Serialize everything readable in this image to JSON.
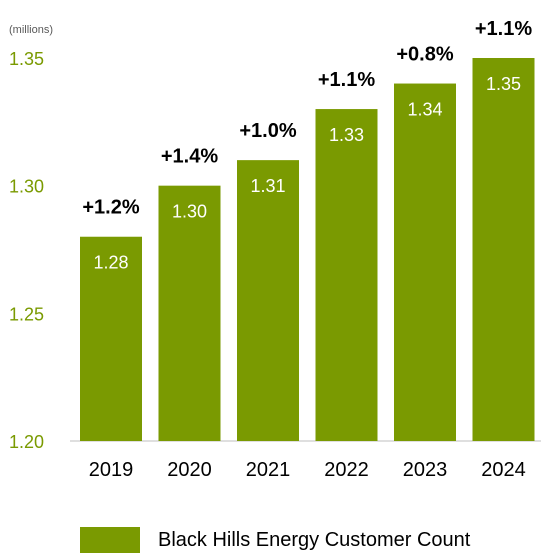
{
  "colors": {
    "bar": "#7a9a01",
    "axis_text": "#7a9a01",
    "label_text": "#000000",
    "bar_label": "#ffffff"
  },
  "unit_label": "(millions)",
  "chart_data": {
    "type": "bar",
    "categories": [
      "2019",
      "2020",
      "2021",
      "2022",
      "2023",
      "2024"
    ],
    "values": [
      1.28,
      1.3,
      1.31,
      1.33,
      1.34,
      1.35
    ],
    "value_labels": [
      "1.28",
      "1.30",
      "1.31",
      "1.33",
      "1.34",
      "1.35"
    ],
    "growth_labels": [
      "+1.2%",
      "+1.4%",
      "+1.0%",
      "+1.1%",
      "+0.8%",
      "+1.1%"
    ],
    "y_ticks": [
      "1.20",
      "1.25",
      "1.30",
      "1.35"
    ],
    "ylim": [
      1.2,
      1.35
    ],
    "grid": false,
    "legend": {
      "position": "bottom",
      "entries": [
        "Black Hills Energy Customer Count"
      ]
    }
  }
}
